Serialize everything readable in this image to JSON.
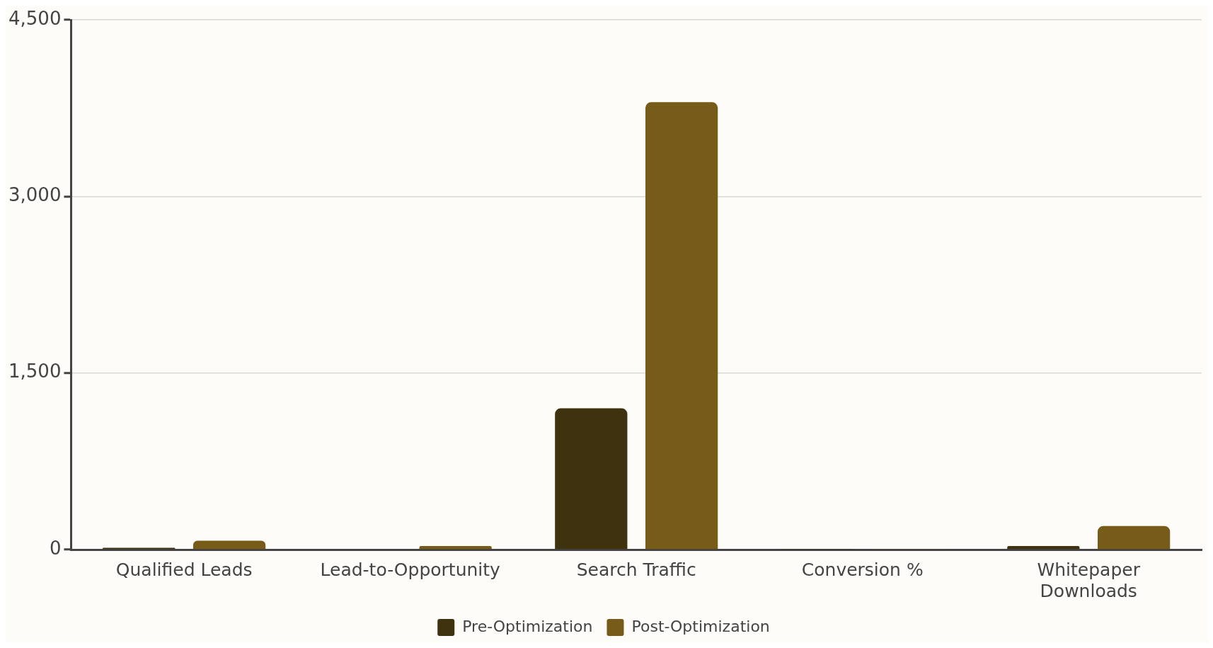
{
  "chart_data": {
    "type": "bar",
    "categories": [
      "Qualified Leads",
      "Lead-to-Opportunity",
      "Search Traffic",
      "Conversion %",
      "Whitepaper Downloads"
    ],
    "series": [
      {
        "name": "Pre-Optimization",
        "color": "#3f320f",
        "values": [
          15,
          5,
          1200,
          2,
          30
        ]
      },
      {
        "name": "Post-Optimization",
        "color": "#775b18",
        "values": [
          75,
          30,
          3800,
          3,
          200
        ]
      }
    ],
    "ylim": [
      0,
      4500
    ],
    "yticks": [
      0,
      {
        "value": 1500,
        "label": "1,500"
      },
      {
        "value": 3000,
        "label": "3,000"
      },
      {
        "value": 4500,
        "label": "4,500"
      }
    ],
    "grid": "y",
    "legend": "bottom"
  }
}
